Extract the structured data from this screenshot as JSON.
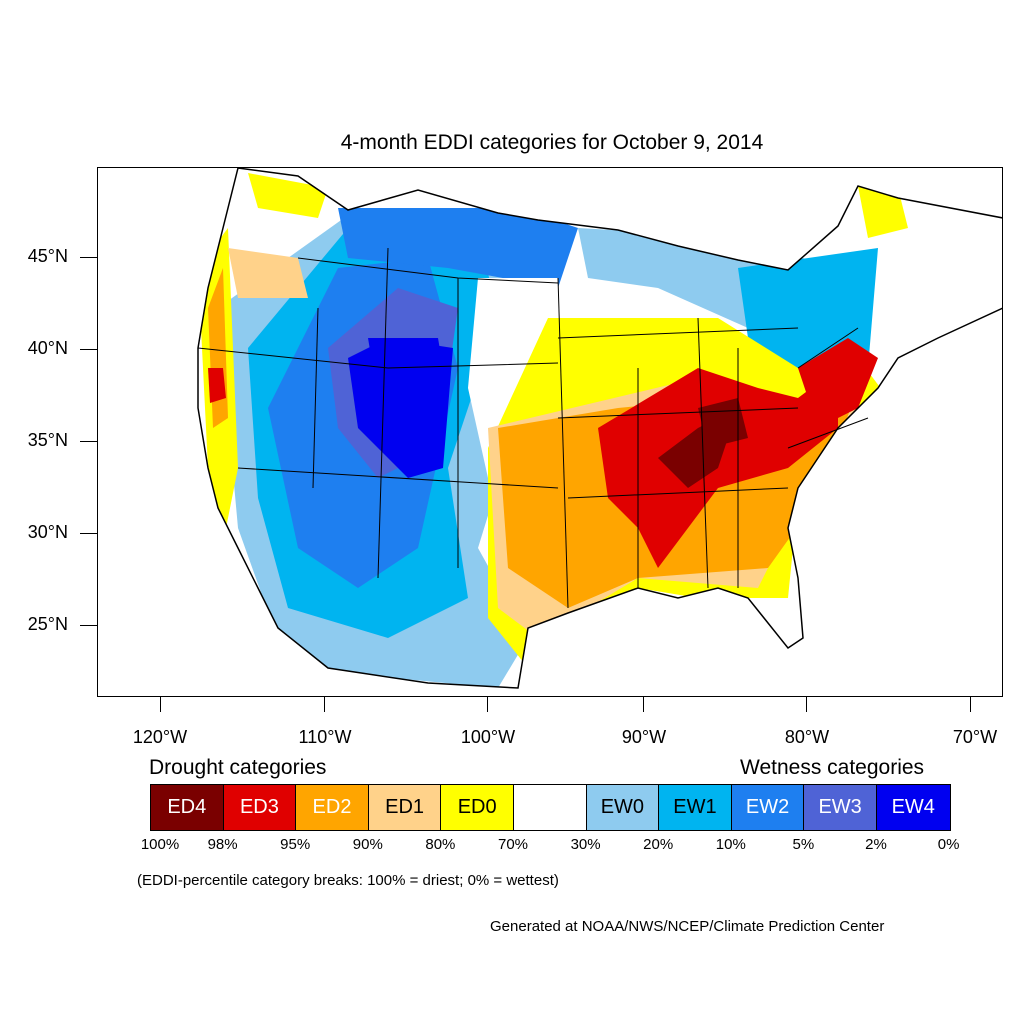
{
  "title": "4-month EDDI categories for October 9, 2014",
  "lat_labels": [
    "45°N",
    "40°N",
    "35°N",
    "30°N",
    "25°N"
  ],
  "lon_labels": [
    "120°W",
    "110°W",
    "100°W",
    "90°W",
    "80°W",
    "70°W"
  ],
  "legend": {
    "drought_heading": "Drought categories",
    "wetness_heading": "Wetness categories",
    "categories": [
      {
        "label": "ED4",
        "color": "#7a0000",
        "text_color": "#ffffff"
      },
      {
        "label": "ED3",
        "color": "#e00000",
        "text_color": "#ffffff"
      },
      {
        "label": "ED2",
        "color": "#ffa500",
        "text_color": "#ffffff"
      },
      {
        "label": "ED1",
        "color": "#ffd28a",
        "text_color": "#000000"
      },
      {
        "label": "ED0",
        "color": "#ffff00",
        "text_color": "#000000"
      },
      {
        "label": "",
        "color": "#ffffff",
        "text_color": "#000000"
      },
      {
        "label": "EW0",
        "color": "#8ecbef",
        "text_color": "#000000"
      },
      {
        "label": "EW1",
        "color": "#00b4f0",
        "text_color": "#000000"
      },
      {
        "label": "EW2",
        "color": "#1e7ff0",
        "text_color": "#ffffff"
      },
      {
        "label": "EW3",
        "color": "#4f63d6",
        "text_color": "#ffffff"
      },
      {
        "label": "EW4",
        "color": "#0000f0",
        "text_color": "#ffffff"
      }
    ],
    "percentiles": [
      "100%",
      "98%",
      "95%",
      "90%",
      "80%",
      "70%",
      "30%",
      "20%",
      "10%",
      "5%",
      "2%",
      "0%"
    ]
  },
  "note": "(EDDI-percentile category breaks: 100% = driest; 0% = wettest)",
  "credit": "Generated at NOAA/NWS/NCEP/Climate Prediction Center"
}
